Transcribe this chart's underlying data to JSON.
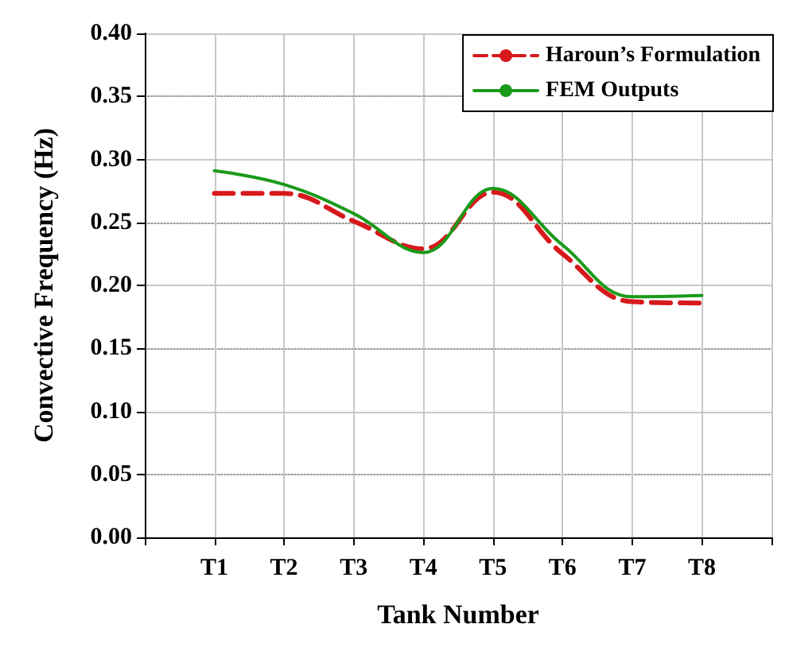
{
  "chart_data": {
    "type": "line",
    "xlabel": "Tank Number",
    "ylabel": "Convective Frequency (Hz)",
    "categories": [
      null,
      "T1",
      "T2",
      "T3",
      "T4",
      "T5",
      "T6",
      "T7",
      "T8",
      null
    ],
    "series": [
      {
        "name": "Haroun’s Formulation",
        "color": "#d7191c",
        "line_style": "dashed",
        "values": [
          null,
          0.273,
          0.273,
          0.251,
          0.229,
          0.274,
          0.225,
          0.187,
          0.186,
          null
        ]
      },
      {
        "name": "FEM Outputs",
        "color": "#1a9a1a",
        "line_style": "solid",
        "values": [
          null,
          0.291,
          0.28,
          0.257,
          0.226,
          0.277,
          0.232,
          0.191,
          0.192,
          null
        ]
      }
    ],
    "ylim": [
      0,
      0.4
    ],
    "yticks": [
      {
        "value": 0,
        "label": "0.00"
      },
      {
        "value": 0.05,
        "label": "0.05"
      },
      {
        "value": 0.1,
        "label": "0.10"
      },
      {
        "value": 0.15,
        "label": "0.15"
      },
      {
        "value": 0.2,
        "label": "0.20"
      },
      {
        "value": 0.25,
        "label": "0.25"
      },
      {
        "value": 0.3,
        "label": "0.30"
      },
      {
        "value": 0.35,
        "label": "0.35"
      },
      {
        "value": 0.4,
        "label": "0.40"
      }
    ],
    "grid": true,
    "legend": "top right",
    "marker": "none"
  }
}
